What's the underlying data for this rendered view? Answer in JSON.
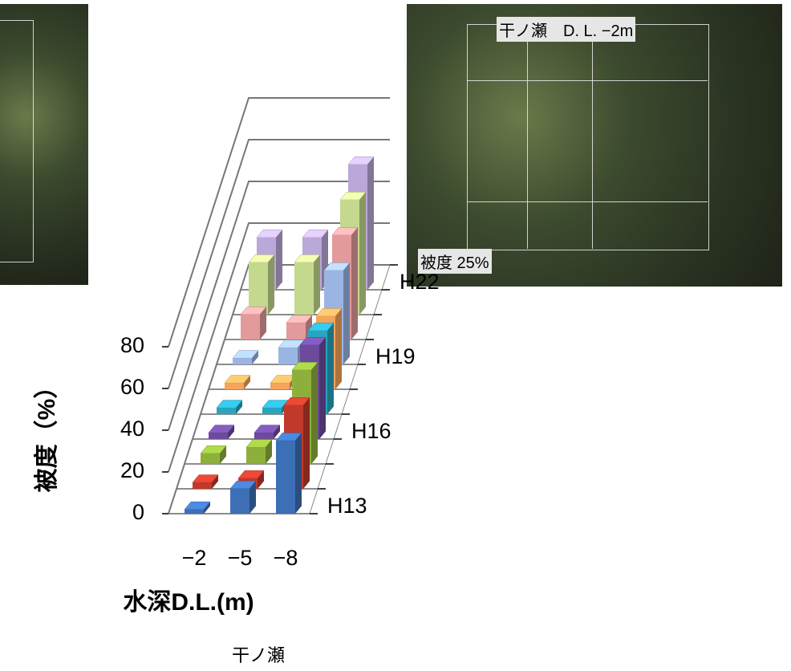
{
  "chart_data": {
    "type": "bar3d",
    "y_label": "被度（%）",
    "x_label": "水深D.L.(m)",
    "caption": "干ノ瀬",
    "categories": [
      "−2",
      "−5",
      "−8"
    ],
    "z_categories": [
      "H13",
      null,
      null,
      "H16",
      null,
      null,
      "H19",
      null,
      null,
      "H22"
    ],
    "series": [
      {
        "color": "#3d6fb6",
        "values": [
          2,
          12,
          35
        ]
      },
      {
        "color": "#c0392b",
        "values": [
          3,
          5,
          40
        ]
      },
      {
        "color": "#8db03c",
        "values": [
          5,
          8,
          45
        ]
      },
      {
        "color": "#6c4a9c",
        "values": [
          3,
          3,
          45
        ]
      },
      {
        "color": "#2aa5c0",
        "values": [
          3,
          3,
          40
        ]
      },
      {
        "color": "#f5a45a",
        "values": [
          3,
          3,
          35
        ]
      },
      {
        "color": "#9bb5e3",
        "values": [
          3,
          8,
          45
        ]
      },
      {
        "color": "#e39a9a",
        "values": [
          12,
          8,
          50
        ]
      },
      {
        "color": "#c4d98e",
        "values": [
          25,
          25,
          55
        ]
      },
      {
        "color": "#b9a8d8",
        "values": [
          25,
          25,
          60
        ]
      }
    ],
    "ylim": [
      0,
      80
    ],
    "yticks": [
      0,
      20,
      40,
      60,
      80
    ],
    "grid": true
  },
  "photos": {
    "site_label": "干ノ瀬　D. L. −2m",
    "cover_label": "被度 25%"
  }
}
